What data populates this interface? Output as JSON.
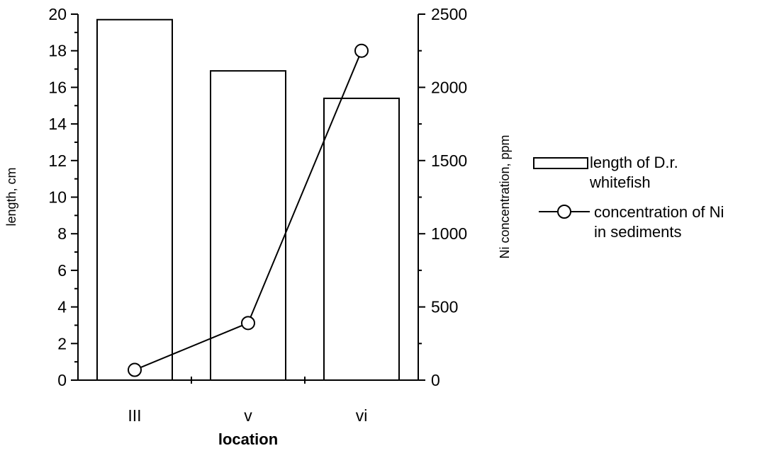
{
  "chart_data": {
    "type": "bar",
    "categories": [
      "III",
      "v",
      "vi"
    ],
    "xlabel": "location",
    "ylabel": "length, cm",
    "y2label": "Ni concentration, ppm",
    "ylim": [
      0,
      20
    ],
    "y2lim": [
      0,
      2500
    ],
    "yticks": [
      "0",
      "2",
      "4",
      "6",
      "8",
      "10",
      "12",
      "14",
      "16",
      "18",
      "20"
    ],
    "y2ticks": [
      "0",
      "500",
      "1000",
      "1500",
      "2000",
      "2500"
    ],
    "series": [
      {
        "name": "length of D.r. whitefish",
        "kind": "bar",
        "axis": "left",
        "values": [
          19.7,
          16.9,
          15.4
        ]
      },
      {
        "name": "concentration of Ni in sediments",
        "kind": "line",
        "marker": "circle",
        "axis": "right",
        "values": [
          70,
          390,
          2250
        ]
      }
    ],
    "legend": {
      "position": "right",
      "entries": [
        {
          "line1": "length of D.r.",
          "line2": "whitefish"
        },
        {
          "line1": "concentration of Ni",
          "line2": "in sediments"
        }
      ]
    },
    "grid": false,
    "colors": {
      "bar_fill": "#ffffff",
      "stroke": "#000000"
    }
  }
}
